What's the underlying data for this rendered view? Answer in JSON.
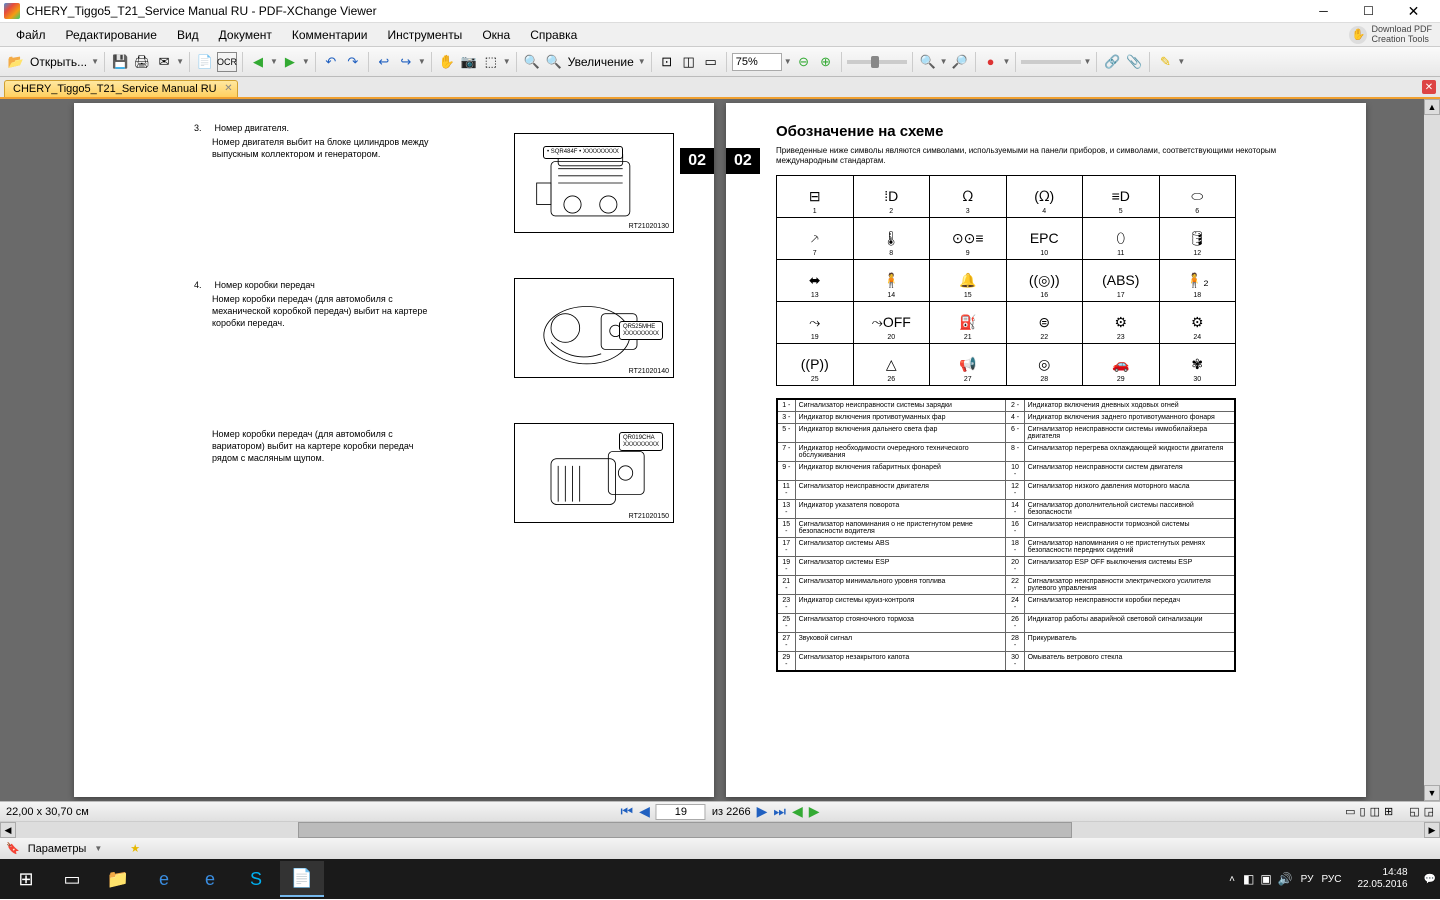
{
  "window": {
    "title": "CHERY_Tiggo5_T21_Service Manual RU - PDF-XChange Viewer",
    "download_pdf_l1": "Download PDF",
    "download_pdf_l2": "Creation Tools"
  },
  "menu": {
    "file": "Файл",
    "edit": "Редактирование",
    "view": "Вид",
    "document": "Документ",
    "comments": "Комментарии",
    "tools": "Инструменты",
    "windows": "Окна",
    "help": "Справка"
  },
  "toolbar": {
    "open": "Открыть...",
    "ocr": "OCR",
    "zoom": "Увеличение",
    "zoom_value": "75%"
  },
  "doctab": {
    "name": "CHERY_Tiggo5_T21_Service Manual RU"
  },
  "left_page": {
    "badge": "02",
    "item3_num": "3.",
    "item3_title": "Номер двигателя.",
    "item3_body": "Номер двигателя выбит на блоке цилиндров между выпускным коллектором и генератором.",
    "fig1_label": "RT21020130",
    "fig1_box": "• SQR484F • XXXXXXXXX",
    "item4_num": "4.",
    "item4_title": "Номер коробки передач",
    "item4_body": "Номер коробки передач (для автомобиля с механической коробкой передач) выбит на картере коробки передач.",
    "fig2_label": "RT21020140",
    "fig2_box_l1": "QR525MHE",
    "fig2_box_l2": "XXXXXXXXX",
    "item5_body": "Номер коробки передач (для автомобиля с вариатором) выбит на картере коробки передач рядом с масляным щупом.",
    "fig3_label": "RT21020150",
    "fig3_box_l1": "QR019CHA",
    "fig3_box_l2": "XXXXXXXXX"
  },
  "right_page": {
    "badge": "02",
    "title": "Обозначение на схеме",
    "intro": "Приведенные ниже символы являются символами, используемыми на панели приборов, и символами, соответствующими некоторым международным стандартам.",
    "symbols": [
      {
        "n": "1",
        "g": "⊟"
      },
      {
        "n": "2",
        "g": "⁞D"
      },
      {
        "n": "3",
        "g": "ᘯ"
      },
      {
        "n": "4",
        "g": "(ᘯ)"
      },
      {
        "n": "5",
        "g": "≡D"
      },
      {
        "n": "6",
        "g": "⬭"
      },
      {
        "n": "7",
        "g": "⸕"
      },
      {
        "n": "8",
        "g": "🌡"
      },
      {
        "n": "9",
        "g": "⊙⊙≡"
      },
      {
        "n": "10",
        "g": "EPC"
      },
      {
        "n": "11",
        "g": "⬯"
      },
      {
        "n": "12",
        "g": "🛢"
      },
      {
        "n": "13",
        "g": "⬌"
      },
      {
        "n": "14",
        "g": "🧍"
      },
      {
        "n": "15",
        "g": "🔔"
      },
      {
        "n": "16",
        "g": "((◎))"
      },
      {
        "n": "17",
        "g": "(ABS)"
      },
      {
        "n": "18",
        "g": "🧍₂"
      },
      {
        "n": "19",
        "g": "⤳"
      },
      {
        "n": "20",
        "g": "⤳OFF"
      },
      {
        "n": "21",
        "g": "⛽"
      },
      {
        "n": "22",
        "g": "⊜"
      },
      {
        "n": "23",
        "g": "⚙"
      },
      {
        "n": "24",
        "g": "⚙"
      },
      {
        "n": "25",
        "g": "((P))"
      },
      {
        "n": "26",
        "g": "△"
      },
      {
        "n": "27",
        "g": "📢"
      },
      {
        "n": "28",
        "g": "◎"
      },
      {
        "n": "29",
        "g": "🚗"
      },
      {
        "n": "30",
        "g": "✾"
      }
    ],
    "legend": [
      [
        "1",
        "Сигнализатор неисправности системы зарядки",
        "2",
        "Индикатор включения дневных ходовых огней"
      ],
      [
        "3",
        "Индикатор включения противотуманных фар",
        "4",
        "Индикатор включения заднего противотуманного фонаря"
      ],
      [
        "5",
        "Индикатор включения дальнего света фар",
        "6",
        "Сигнализатор неисправности системы иммобилайзера двигателя"
      ],
      [
        "7",
        "Индикатор необходимости очередного технического обслуживания",
        "8",
        "Сигнализатор перегрева охлаждающей жидкости двигателя"
      ],
      [
        "9",
        "Индикатор включения габаритных фонарей",
        "10",
        "Сигнализатор неисправности систем двигателя"
      ],
      [
        "11",
        "Сигнализатор неисправности двигателя",
        "12",
        "Сигнализатор низкого давления моторного масла"
      ],
      [
        "13",
        "Индикатор указателя поворота",
        "14",
        "Сигнализатор дополнительной системы пассивной безопасности"
      ],
      [
        "15",
        "Сигнализатор напоминания о не пристегнутом ремне безопасности водителя",
        "16",
        "Сигнализатор неисправности тормозной системы"
      ],
      [
        "17",
        "Сигнализатор системы ABS",
        "18",
        "Сигнализатор напоминания о не пристегнутых ремнях безопасности передних сидений"
      ],
      [
        "19",
        "Сигнализатор системы ESP",
        "20",
        "Сигнализатор ESP OFF выключения системы ESP"
      ],
      [
        "21",
        "Сигнализатор минимального уровня топлива",
        "22",
        "Сигнализатор неисправности электрического усилителя рулевого управления"
      ],
      [
        "23",
        "Индикатор системы круиз-контроля",
        "24",
        "Сигнализатор неисправности коробки передач"
      ],
      [
        "25",
        "Сигнализатор стояночного тормоза",
        "26",
        "Индикатор работы аварийной световой сигнализации"
      ],
      [
        "27",
        "Звуковой сигнал",
        "28",
        "Прикуриватель"
      ],
      [
        "29",
        "Сигнализатор незакрытого капота",
        "30",
        "Омыватель ветрового стекла"
      ]
    ]
  },
  "status": {
    "coords": "22,00 x 30,70 см",
    "page": "19",
    "total": "из 2266",
    "params": "Параметры"
  },
  "tray": {
    "lang1": "РУ",
    "lang2": "РУС",
    "time": "14:48",
    "date": "22.05.2016"
  },
  "colors": {
    "accent_tab": "#ffd060",
    "page_bg": "#6a6a6a",
    "taskbar": "#1a1a1a"
  }
}
